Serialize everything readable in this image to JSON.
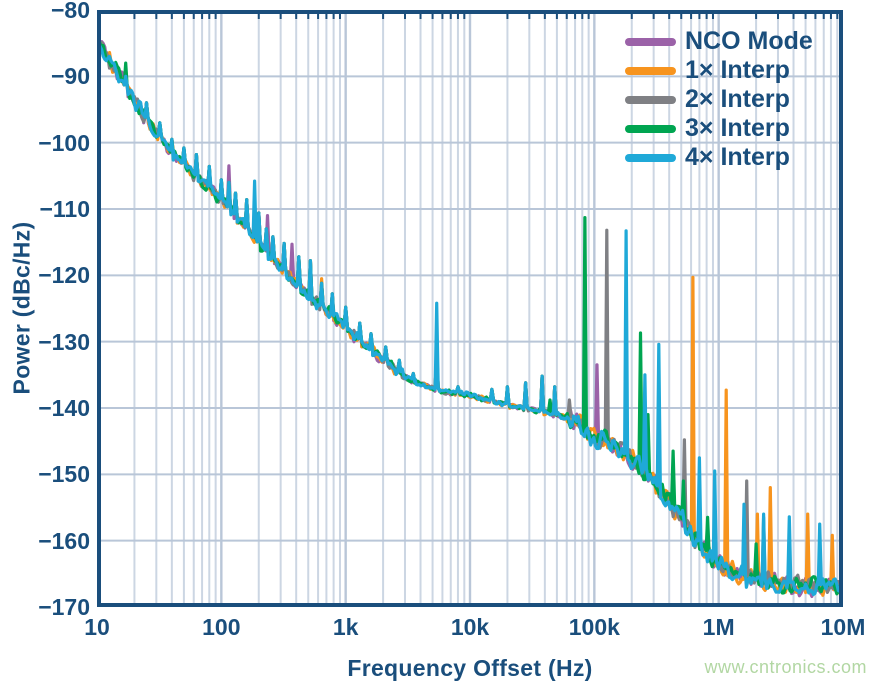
{
  "watermark": "www.cntronics.com",
  "chart_data": {
    "type": "line",
    "title": "",
    "xlabel": "Frequency Offset (Hz)",
    "ylabel": "Power (dBc/Hz)",
    "xscale": "log",
    "xlim": [
      10,
      10000000
    ],
    "ylim": [
      -170,
      -80
    ],
    "xtick_values": [
      10,
      100,
      1000,
      10000,
      100000,
      1000000,
      10000000
    ],
    "xtick_labels": [
      "10",
      "100",
      "1k",
      "10k",
      "100k",
      "1M",
      "10M"
    ],
    "ytick_values": [
      -80,
      -90,
      -100,
      -110,
      -120,
      -130,
      -140,
      -150,
      -160,
      -170
    ],
    "ytick_labels": [
      "−80",
      "−90",
      "−100",
      "−110",
      "−120",
      "−130",
      "−140",
      "−150",
      "−160",
      "−170"
    ],
    "legend_position": "top-right",
    "grid_on": true,
    "colors": {
      "axis": "#1a4e7c",
      "grid_major": "#b9c6d8",
      "grid_minor": "#ccd6e3",
      "background": "#ffffff"
    },
    "baseline_dbc_hz": [
      [
        10,
        -84.3
      ],
      [
        12,
        -87
      ],
      [
        15,
        -90
      ],
      [
        19,
        -93
      ],
      [
        24,
        -96
      ],
      [
        30,
        -98.5
      ],
      [
        38,
        -101
      ],
      [
        48,
        -103
      ],
      [
        60,
        -104.8
      ],
      [
        75,
        -106.3
      ],
      [
        95,
        -108.3
      ],
      [
        120,
        -110.3
      ],
      [
        150,
        -112.3
      ],
      [
        190,
        -114.8
      ],
      [
        240,
        -116.8
      ],
      [
        300,
        -118.8
      ],
      [
        380,
        -120.8
      ],
      [
        480,
        -122.8
      ],
      [
        600,
        -124.3
      ],
      [
        750,
        -125.8
      ],
      [
        950,
        -127.3
      ],
      [
        1200,
        -129.3
      ],
      [
        1500,
        -130.8
      ],
      [
        1900,
        -132.3
      ],
      [
        2400,
        -133.8
      ],
      [
        3000,
        -135.2
      ],
      [
        3800,
        -136.3
      ],
      [
        4800,
        -137
      ],
      [
        6000,
        -137.5
      ],
      [
        7500,
        -137.8
      ],
      [
        9500,
        -138
      ],
      [
        12000,
        -138.5
      ],
      [
        15000,
        -139
      ],
      [
        19000,
        -139.5
      ],
      [
        24000,
        -139.9
      ],
      [
        30000,
        -140.2
      ],
      [
        38000,
        -140.6
      ],
      [
        48000,
        -141
      ],
      [
        60000,
        -141.4
      ],
      [
        75000,
        -142.2
      ],
      [
        95000,
        -144.5
      ],
      [
        120000,
        -144.8
      ],
      [
        150000,
        -146
      ],
      [
        190000,
        -147.5
      ],
      [
        240000,
        -149
      ],
      [
        300000,
        -151
      ],
      [
        380000,
        -153.5
      ],
      [
        480000,
        -156
      ],
      [
        600000,
        -158.8
      ],
      [
        750000,
        -161
      ],
      [
        950000,
        -163.2
      ],
      [
        1200000,
        -164.4
      ],
      [
        1500000,
        -165.2
      ],
      [
        1900000,
        -165.8
      ],
      [
        2400000,
        -166.1
      ],
      [
        3000000,
        -166.4
      ],
      [
        3800000,
        -166.6
      ],
      [
        4800000,
        -166.8
      ],
      [
        6000000,
        -166.9
      ],
      [
        7500000,
        -167
      ],
      [
        9500000,
        -167
      ]
    ],
    "shared_spurs": [
      [
        17,
        -90
      ],
      [
        25,
        -94
      ],
      [
        32,
        -97
      ],
      [
        40,
        -99.5
      ],
      [
        50,
        -100.8
      ],
      [
        63,
        -101.8
      ],
      [
        80,
        -103.6
      ],
      [
        100,
        -105.6
      ],
      [
        115,
        -106
      ],
      [
        130,
        -107.6
      ],
      [
        160,
        -108.6
      ],
      [
        200,
        -110.6
      ],
      [
        230,
        -113
      ],
      [
        260,
        -114.2
      ],
      [
        320,
        -115.2
      ],
      [
        420,
        -117.2
      ],
      [
        520,
        -117.8
      ],
      [
        640,
        -121.2
      ],
      [
        780,
        -122.8
      ],
      [
        1000,
        -124.8
      ],
      [
        1300,
        -127.2
      ],
      [
        1600,
        -128.8
      ],
      [
        2100,
        -130.8
      ],
      [
        2700,
        -132.8
      ],
      [
        3500,
        -134.8
      ],
      [
        5400,
        -131
      ],
      [
        8000,
        -136.8
      ],
      [
        15000,
        -137.2
      ],
      [
        20000,
        -136.8
      ],
      [
        28000,
        -136.2
      ],
      [
        38000,
        -135.2
      ],
      [
        48000,
        -136.8
      ]
    ],
    "series": [
      {
        "name": "NCO Mode",
        "color": "#9b62a8",
        "spurs": [
          [
            115,
            -103.5
          ],
          [
            235,
            -111
          ],
          [
            370,
            -115.3
          ],
          [
            105000,
            -133.5
          ]
        ]
      },
      {
        "name": "1× Interp",
        "color": "#f7941e",
        "spurs": [
          [
            640,
            -120.5
          ],
          [
            620000,
            -120.3
          ],
          [
            1150000,
            -137.3
          ],
          [
            2050000,
            -156
          ],
          [
            2600000,
            -152
          ],
          [
            5200000,
            -156
          ],
          [
            8200000,
            -159.2
          ]
        ]
      },
      {
        "name": "2× Interp",
        "color": "#7f8084",
        "spurs": [
          [
            63000,
            -138.8
          ],
          [
            126000,
            -113.2
          ],
          [
            530000,
            -144.8
          ],
          [
            1680000,
            -151
          ],
          [
            2300000,
            -156.5
          ]
        ]
      },
      {
        "name": "3× Interp",
        "color": "#00a551",
        "spurs": [
          [
            17,
            -88
          ],
          [
            44000,
            -138.8
          ],
          [
            84000,
            -111.3
          ],
          [
            235000,
            -128.7
          ],
          [
            270000,
            -141
          ],
          [
            430000,
            -146.5
          ],
          [
            520000,
            -151
          ],
          [
            815000,
            -156.5
          ],
          [
            2000000,
            -160.5
          ]
        ]
      },
      {
        "name": "4× Interp",
        "color": "#1fa9d8",
        "spurs": [
          [
            185,
            -105.8
          ],
          [
            5400,
            -124.2
          ],
          [
            180000,
            -113.3
          ],
          [
            255000,
            -135
          ],
          [
            330000,
            -130.4
          ],
          [
            700000,
            -147.5
          ],
          [
            930000,
            -149.5
          ],
          [
            1600000,
            -154.5
          ],
          [
            2300000,
            -156
          ],
          [
            3700000,
            -156.4
          ],
          [
            6500000,
            -157.5
          ]
        ]
      }
    ]
  }
}
